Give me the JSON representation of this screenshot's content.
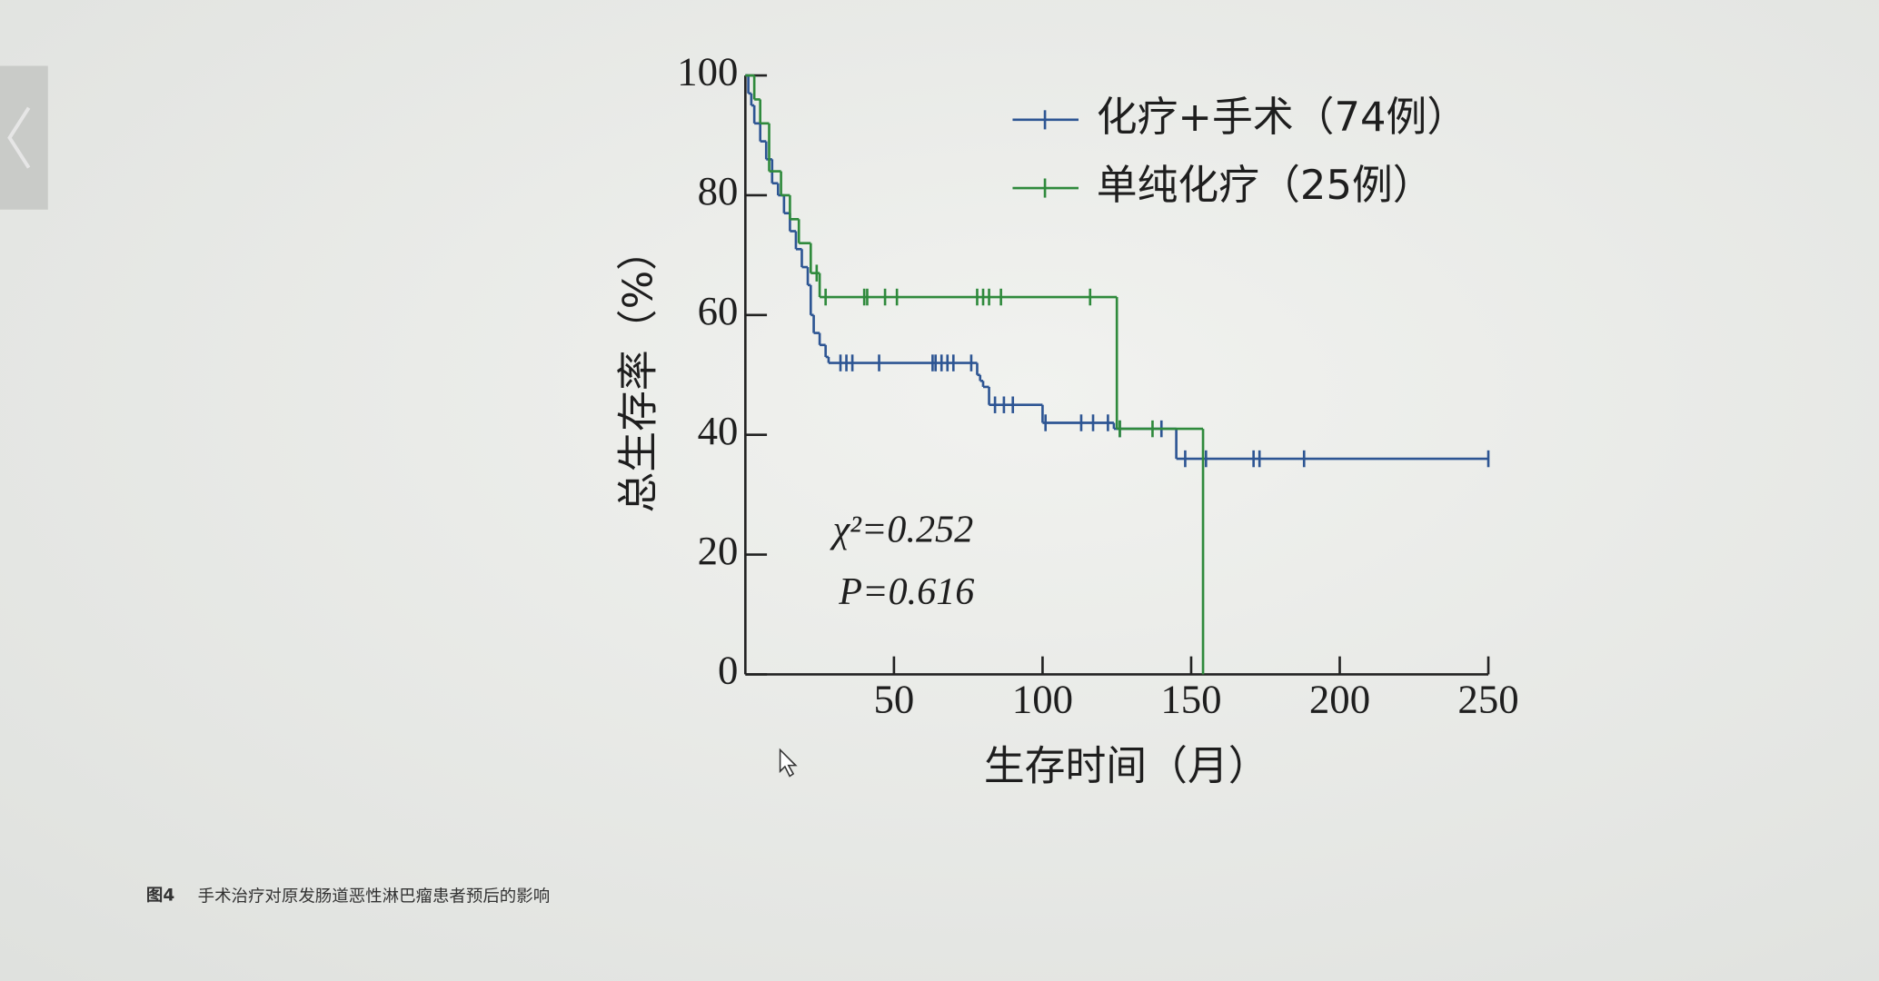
{
  "chart_data": {
    "type": "step",
    "figure_label": "图4",
    "caption": "手术治疗对原发肠道恶性淋巴瘤患者预后的影响",
    "xlabel": "生存时间（月）",
    "ylabel": "总生存率（%）",
    "annotations": [
      "χ²=0.252",
      "P=0.616"
    ],
    "xlim": [
      0,
      250
    ],
    "xticks": [
      50,
      100,
      150,
      200,
      250
    ],
    "ylim": [
      0,
      100
    ],
    "yticks": [
      0,
      20,
      40,
      60,
      80,
      100
    ],
    "series": [
      {
        "name": "化疗+手术（74例）",
        "color": "#2d5593",
        "x": [
          0,
          1,
          2,
          3,
          5,
          7,
          9,
          11,
          13,
          15,
          17,
          19,
          21,
          22,
          23,
          25,
          27,
          28,
          78,
          79,
          80,
          82,
          100,
          124,
          145,
          250
        ],
        "values": [
          100,
          97,
          95,
          92,
          89,
          86,
          82,
          80,
          77,
          74,
          71,
          68,
          65,
          60,
          57,
          55,
          53,
          52,
          50,
          49,
          48,
          45,
          42,
          41,
          36,
          36
        ],
        "censored": [
          32,
          34,
          36,
          45,
          63,
          64,
          66,
          68,
          70,
          76,
          84,
          87,
          90,
          101,
          113,
          117,
          122,
          126,
          140,
          148,
          155,
          171,
          173,
          188,
          250
        ]
      },
      {
        "name": "单纯化疗（25例）",
        "color": "#2f8a3c",
        "x": [
          0,
          3,
          5,
          8,
          12,
          15,
          18,
          22,
          25,
          125,
          154
        ],
        "values": [
          100,
          96,
          92,
          84,
          80,
          76,
          72,
          67,
          63,
          41,
          0
        ],
        "censored": [
          24,
          27,
          40,
          41,
          47,
          51,
          78,
          80,
          82,
          86,
          116,
          126,
          137
        ]
      }
    ]
  }
}
